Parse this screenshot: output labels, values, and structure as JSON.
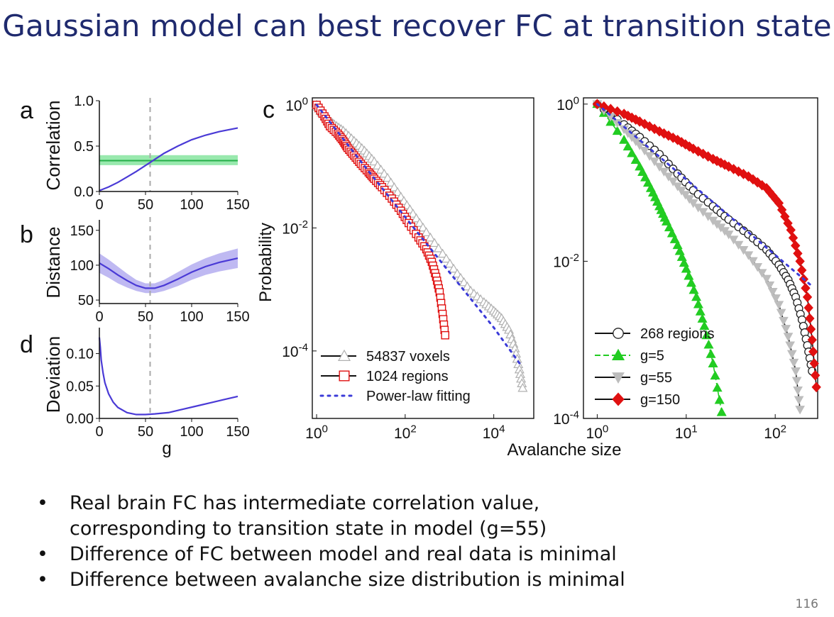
{
  "slide": {
    "title": "Gaussian model can best recover FC at transition state",
    "page_number": "116",
    "bullets": [
      "Real brain FC has intermediate correlation value,",
      "corresponding to transition state in model (g=55)",
      "Difference of FC between model and real data is minimal",
      "Difference between avalanche size distribution is minimal"
    ]
  },
  "colors": {
    "title": "#1f2a6e",
    "model_line": "#4a3ad6",
    "model_band": "#a9a2ee",
    "real_band": "#7fe39a",
    "real_line": "#26b04a",
    "marker_line": "#aaaaaa",
    "fit_line": "#3b3bd8",
    "red": "#e01010",
    "green": "#22cc22",
    "gray": "#bdbdbd"
  },
  "chart_data": [
    {
      "panel": "a",
      "type": "line",
      "xlabel": "",
      "ylabel": "Correlation",
      "xlim": [
        0,
        150
      ],
      "ylim": [
        0,
        1
      ],
      "xticks": [
        "0",
        "50",
        "100",
        "150"
      ],
      "yticks": [
        "0.0",
        "0.5",
        "1.0"
      ],
      "vline": 55,
      "reference_band": {
        "center": 0.34,
        "low": 0.29,
        "high": 0.4
      },
      "series": [
        {
          "x": [
            0,
            10,
            20,
            30,
            40,
            55,
            70,
            85,
            100,
            115,
            130,
            150
          ],
          "y": [
            0.01,
            0.05,
            0.1,
            0.16,
            0.22,
            0.32,
            0.42,
            0.5,
            0.57,
            0.62,
            0.66,
            0.7
          ]
        }
      ]
    },
    {
      "panel": "b",
      "type": "line",
      "xlabel": "",
      "ylabel": "Distance",
      "xlim": [
        0,
        150
      ],
      "ylim": [
        45,
        165
      ],
      "xticks": [
        "0",
        "50",
        "100",
        "150"
      ],
      "yticks": [
        "50",
        "100",
        "150"
      ],
      "vline": 55,
      "series": [
        {
          "x": [
            0,
            10,
            20,
            30,
            40,
            50,
            60,
            70,
            85,
            100,
            115,
            130,
            150
          ],
          "y": [
            103,
            95,
            86,
            78,
            71,
            67,
            67,
            71,
            80,
            90,
            98,
            104,
            110
          ],
          "band": [
            14,
            13,
            12,
            10,
            8,
            7,
            7,
            8,
            10,
            11,
            12,
            13,
            14
          ]
        }
      ]
    },
    {
      "panel": "d",
      "type": "line",
      "xlabel": "g",
      "ylabel": "Deviation",
      "xlim": [
        0,
        150
      ],
      "ylim": [
        0,
        0.14
      ],
      "xticks": [
        "0",
        "50",
        "100",
        "150"
      ],
      "yticks": [
        "0.00",
        "0.05",
        "0.10"
      ],
      "vline": 55,
      "series": [
        {
          "x": [
            0,
            1,
            2,
            4,
            6,
            10,
            15,
            20,
            30,
            40,
            50,
            60,
            75,
            90,
            105,
            120,
            135,
            150
          ],
          "y": [
            0.125,
            0.11,
            0.09,
            0.07,
            0.055,
            0.038,
            0.025,
            0.017,
            0.009,
            0.006,
            0.006,
            0.007,
            0.009,
            0.014,
            0.019,
            0.024,
            0.029,
            0.034
          ]
        }
      ]
    },
    {
      "panel": "c",
      "type": "scatter",
      "xlabel": "Avalanche size",
      "ylabel": "Probability",
      "xscale": "log",
      "yscale": "log",
      "xlim": [
        0.8,
        80000
      ],
      "ylim": [
        8e-06,
        1.3
      ],
      "xticks": [
        "10^0",
        "10^2",
        "10^4"
      ],
      "yticks": [
        "10^0",
        "10^-2",
        "10^-4"
      ],
      "legend": "bottom-left",
      "series": [
        {
          "name": "54837 voxels",
          "marker": "triangle-up",
          "color": "#bdbdbd",
          "x": [
            1,
            1.3,
            1.8,
            2.5,
            4,
            7,
            12,
            20,
            40,
            80,
            150,
            300,
            700,
            1500,
            3000,
            6000,
            10000,
            15000,
            22000,
            30000,
            38000,
            45000
          ],
          "y": [
            1,
            0.75,
            0.58,
            0.48,
            0.38,
            0.26,
            0.18,
            0.12,
            0.065,
            0.032,
            0.017,
            0.0085,
            0.0038,
            0.0018,
            0.00095,
            0.00062,
            0.00045,
            0.00034,
            0.00022,
            0.00011,
            5e-05,
            2.5e-05
          ]
        },
        {
          "name": "1024 regions",
          "marker": "square",
          "color": "#e01010",
          "x": [
            1,
            1.5,
            2,
            3,
            4,
            5,
            7,
            10,
            15,
            20,
            30,
            50,
            80,
            120,
            200,
            300,
            400,
            500,
            600,
            700,
            800
          ],
          "y": [
            1,
            0.65,
            0.45,
            0.34,
            0.26,
            0.2,
            0.15,
            0.11,
            0.08,
            0.063,
            0.046,
            0.03,
            0.019,
            0.012,
            0.007,
            0.0045,
            0.0028,
            0.0016,
            0.0009,
            0.0004,
            0.00018
          ]
        },
        {
          "name": "Power-law fitting",
          "marker": "dotted-line",
          "color": "#3b3bd8",
          "x": [
            1,
            10,
            100,
            1000,
            10000,
            40000
          ],
          "y": [
            1,
            0.12,
            0.015,
            0.0019,
            0.00024,
            6e-05
          ]
        }
      ]
    },
    {
      "panel": "c-right",
      "type": "scatter",
      "xlabel": "",
      "ylabel": "",
      "xscale": "log",
      "yscale": "log",
      "xlim": [
        0.7,
        300
      ],
      "ylim": [
        0.0001,
        1.2
      ],
      "xticks": [
        "10^0",
        "10^1",
        "10^2"
      ],
      "yticks": [
        "10^0",
        "10^-2",
        "10^-4"
      ],
      "legend": "bottom-left",
      "series": [
        {
          "name": "268 regions",
          "marker": "circle",
          "color": "#222222",
          "x": [
            1,
            2,
            3,
            5,
            8,
            12,
            20,
            30,
            50,
            80,
            110,
            140,
            170,
            200,
            230,
            260
          ],
          "y": [
            1,
            0.55,
            0.38,
            0.23,
            0.13,
            0.08,
            0.05,
            0.034,
            0.022,
            0.014,
            0.009,
            0.0058,
            0.0035,
            0.0018,
            0.00085,
            0.0004
          ]
        },
        {
          "name": "g=5",
          "marker": "triangle-up",
          "color": "#22cc22",
          "x": [
            1,
            2,
            3,
            4,
            5,
            6,
            8,
            10,
            13,
            16,
            20,
            25
          ],
          "y": [
            1,
            0.35,
            0.16,
            0.085,
            0.05,
            0.032,
            0.016,
            0.008,
            0.0035,
            0.0015,
            0.0005,
            0.00012
          ]
        },
        {
          "name": "g=55",
          "marker": "triangle-down",
          "color": "#bdbdbd",
          "x": [
            1,
            2,
            3,
            5,
            8,
            12,
            20,
            30,
            50,
            80,
            110,
            140,
            170,
            190
          ],
          "y": [
            1,
            0.48,
            0.3,
            0.16,
            0.09,
            0.055,
            0.033,
            0.022,
            0.012,
            0.006,
            0.0028,
            0.0011,
            0.0004,
            0.00013
          ]
        },
        {
          "name": "g=150",
          "marker": "diamond",
          "color": "#e01010",
          "x": [
            1,
            2,
            3,
            5,
            8,
            12,
            20,
            30,
            50,
            80,
            110,
            150,
            190,
            230,
            260,
            290
          ],
          "y": [
            1,
            0.75,
            0.6,
            0.45,
            0.35,
            0.27,
            0.2,
            0.16,
            0.12,
            0.085,
            0.055,
            0.025,
            0.01,
            0.0035,
            0.001,
            0.00025
          ]
        },
        {
          "name": "",
          "marker": "dotted-line",
          "color": "#3b3bd8",
          "x": [
            1,
            10,
            100,
            250
          ],
          "y": [
            1,
            0.11,
            0.012,
            0.005
          ]
        }
      ]
    }
  ],
  "panel_labels": {
    "a": "a",
    "b": "b",
    "c": "c",
    "d": "d"
  }
}
